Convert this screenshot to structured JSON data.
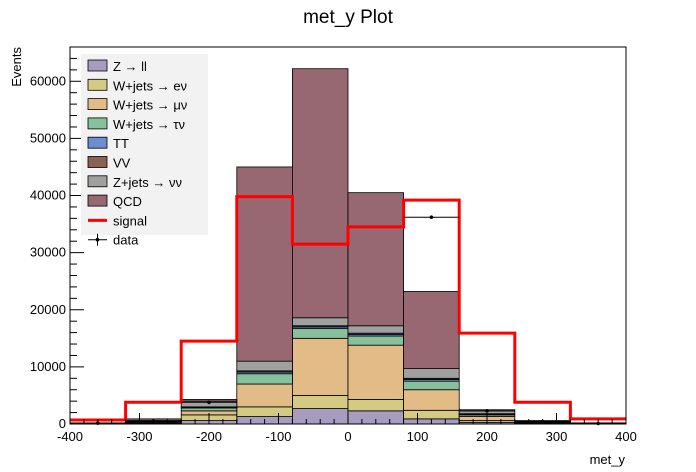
{
  "chart_data": {
    "type": "bar",
    "title": "met_y Plot",
    "xlabel": "met_y",
    "ylabel": "Events",
    "xlim": [
      -400,
      400
    ],
    "ylim": [
      0,
      66000
    ],
    "bin_edges": [
      -400,
      -320,
      -240,
      -160,
      -80,
      0,
      80,
      160,
      240,
      320,
      400
    ],
    "x_ticks": [
      -400,
      -300,
      -200,
      -100,
      0,
      100,
      200,
      300,
      400
    ],
    "y_ticks": [
      0,
      10000,
      20000,
      30000,
      40000,
      50000,
      60000
    ],
    "stacked": true,
    "series": [
      {
        "name": "Z → ll",
        "color": "#a59cc0",
        "values": [
          30,
          100,
          600,
          1300,
          2700,
          2300,
          900,
          300,
          60,
          20
        ]
      },
      {
        "name": "W+jets → eν",
        "color": "#d3cb83",
        "values": [
          20,
          80,
          1000,
          1700,
          2300,
          2000,
          1500,
          300,
          50,
          20
        ]
      },
      {
        "name": "W+jets → μν",
        "color": "#e2bb86",
        "values": [
          30,
          150,
          700,
          4000,
          10000,
          9500,
          3600,
          700,
          150,
          30
        ]
      },
      {
        "name": "W+jets → τν",
        "color": "#87c09c",
        "values": [
          10,
          60,
          500,
          1800,
          1700,
          1600,
          1500,
          300,
          60,
          10
        ]
      },
      {
        "name": "TT",
        "color": "#6c8dd2",
        "values": [
          5,
          20,
          100,
          300,
          300,
          300,
          300,
          100,
          20,
          5
        ]
      },
      {
        "name": "VV",
        "color": "#8a6255",
        "values": [
          5,
          20,
          100,
          200,
          200,
          200,
          200,
          100,
          20,
          5
        ]
      },
      {
        "name": "Z+jets → νν",
        "color": "#a0a09e",
        "values": [
          30,
          170,
          1000,
          1700,
          1400,
          1300,
          1700,
          500,
          140,
          30
        ]
      },
      {
        "name": "QCD",
        "color": "#986872",
        "values": [
          70,
          300,
          300,
          34000,
          43600,
          23300,
          13500,
          200,
          100,
          80
        ]
      }
    ],
    "signal": {
      "name": "signal",
      "color": "#ff0000",
      "values": [
        700,
        3800,
        14500,
        39800,
        31500,
        34500,
        39200,
        15900,
        3800,
        900
      ]
    },
    "data": {
      "name": "data",
      "x": [
        -360,
        -280,
        -200,
        -120,
        -40,
        40,
        120,
        200,
        280,
        360
      ],
      "values": [
        150,
        500,
        3800,
        null,
        null,
        null,
        36200,
        2300,
        400,
        100
      ]
    },
    "legend_position": "top-left"
  }
}
